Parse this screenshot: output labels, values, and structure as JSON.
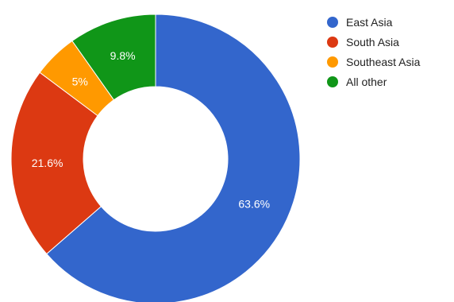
{
  "chart_data": {
    "type": "pie",
    "donut": true,
    "labels": [
      "East Asia",
      "South Asia",
      "Southeast Asia",
      "All other"
    ],
    "values": [
      63.6,
      21.6,
      5,
      9.8
    ],
    "value_labels": [
      "63.6%",
      "21.6%",
      "5%",
      "9.8%"
    ],
    "colors": [
      "#3366cc",
      "#dc3912",
      "#ff9900",
      "#109618"
    ],
    "legend_position": "right",
    "start": "top",
    "direction": "clockwise"
  },
  "legend": {
    "items": [
      {
        "label": "East Asia",
        "color": "#3366cc"
      },
      {
        "label": "South Asia",
        "color": "#dc3912"
      },
      {
        "label": "Southeast Asia",
        "color": "#ff9900"
      },
      {
        "label": "All other",
        "color": "#109618"
      }
    ]
  }
}
